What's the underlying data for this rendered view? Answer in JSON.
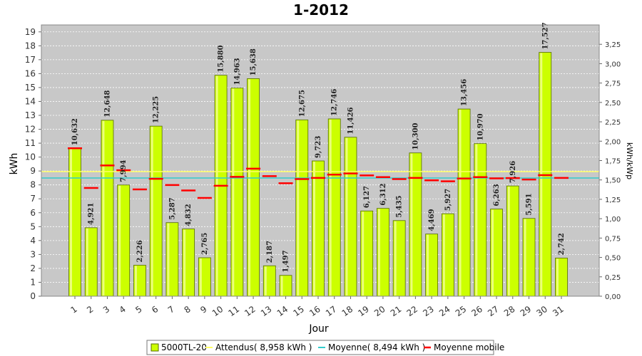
{
  "chart_data": {
    "type": "bar",
    "title": "1-2012",
    "xlabel": "Jour",
    "ylabel": "kWh",
    "y2label": "kWh/kWp",
    "ylim": [
      0,
      19.5
    ],
    "y2lim": [
      0,
      3.5
    ],
    "yticks": [
      0,
      1,
      2,
      3,
      4,
      5,
      6,
      7,
      8,
      9,
      10,
      11,
      12,
      13,
      14,
      15,
      16,
      17,
      18,
      19
    ],
    "y2ticks": [
      "0,00",
      "0,25",
      "0,50",
      "0,75",
      "1,00",
      "1,25",
      "1,50",
      "1,75",
      "2,00",
      "2,25",
      "2,50",
      "2,75",
      "3,00",
      "3,25"
    ],
    "grid": true,
    "legend_position": "bottom",
    "categories": [
      "1",
      "2",
      "3",
      "4",
      "5",
      "6",
      "7",
      "8",
      "9",
      "10",
      "11",
      "12",
      "13",
      "14",
      "15",
      "16",
      "17",
      "18",
      "19",
      "20",
      "21",
      "22",
      "23",
      "24",
      "25",
      "26",
      "27",
      "28",
      "29",
      "30",
      "31"
    ],
    "series": [
      {
        "name": "5000TL-20",
        "type": "bar",
        "color": "#ccff00",
        "values": [
          10.632,
          4.921,
          12.648,
          7.994,
          2.226,
          12.225,
          5.287,
          4.832,
          2.765,
          15.88,
          14.963,
          15.638,
          2.187,
          1.497,
          12.675,
          9.723,
          12.746,
          11.426,
          6.127,
          6.312,
          5.435,
          10.3,
          4.469,
          5.927,
          13.456,
          10.97,
          6.263,
          7.926,
          5.591,
          17.527,
          2.742
        ],
        "labels": [
          "10,632",
          "4,921",
          "12,648",
          "7,994",
          "2,226",
          "12,225",
          "5,287",
          "4,832",
          "2,765",
          "15,880",
          "14,963",
          "15,638",
          "2,187",
          "1,497",
          "12,675",
          "9,723",
          "12,746",
          "11,426",
          "6,127",
          "6,312",
          "5,435",
          "10,300",
          "4,469",
          "5,927",
          "13,456",
          "10,970",
          "6,263",
          "7,926",
          "5,591",
          "17,527",
          "2,742"
        ]
      },
      {
        "name": "Attendus( 8,958 kWh )",
        "type": "line",
        "color": "#ffff66",
        "value": 8.958
      },
      {
        "name": "Moyenne( 8,494 kWh )",
        "type": "line",
        "color": "#33cccc",
        "value": 8.494
      },
      {
        "name": "Moyenne mobile",
        "type": "marker",
        "color": "#ff0000",
        "values": [
          10.632,
          7.78,
          9.4,
          9.05,
          7.68,
          8.44,
          7.99,
          7.6,
          7.06,
          7.94,
          8.58,
          9.17,
          8.63,
          8.12,
          8.42,
          8.5,
          8.74,
          8.82,
          8.68,
          8.56,
          8.42,
          8.5,
          8.33,
          8.26,
          8.46,
          8.56,
          8.47,
          8.49,
          8.39,
          8.7,
          8.5
        ]
      }
    ]
  }
}
